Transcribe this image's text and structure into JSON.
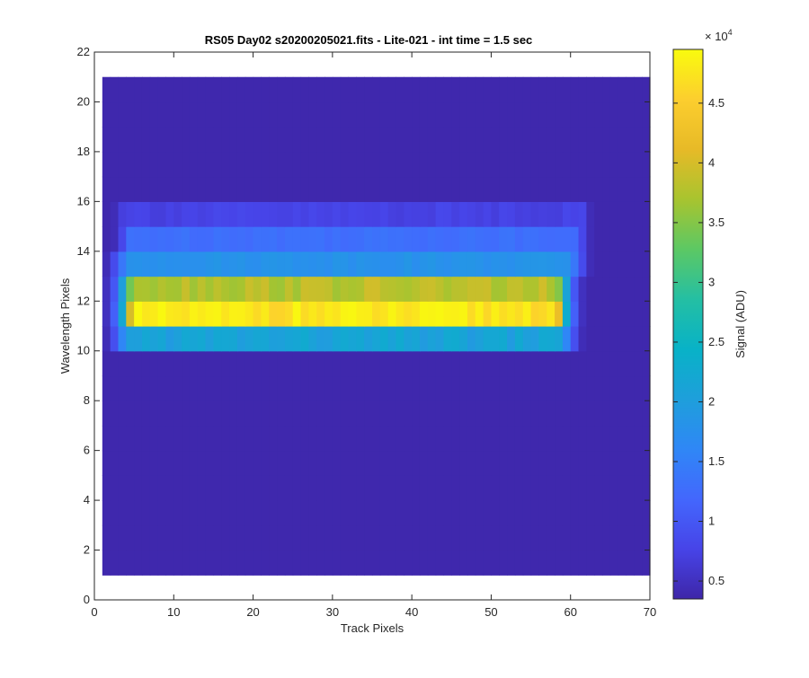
{
  "chart_data": {
    "type": "heatmap",
    "title": "RS05 Day02  s20200205021.fits - Lite-021 - int time = 1.5 sec",
    "xlabel": "Track Pixels",
    "ylabel": "Wavelength Pixels",
    "xlim": [
      0,
      70
    ],
    "ylim": [
      0,
      22
    ],
    "xticks": [
      "0",
      "10",
      "20",
      "30",
      "40",
      "50",
      "60",
      "70"
    ],
    "yticks": [
      "0",
      "2",
      "4",
      "6",
      "8",
      "10",
      "12",
      "14",
      "16",
      "18",
      "20",
      "22"
    ],
    "grid": false,
    "x_columns": [
      1,
      69
    ],
    "y_rows": [
      1,
      21
    ],
    "colorbar": {
      "label": "Signal (ADU)",
      "multiplier": "× 10",
      "multiplier_exponent": "4",
      "ticks": [
        "0.5",
        "1",
        "1.5",
        "2",
        "2.5",
        "3",
        "3.5",
        "4",
        "4.5"
      ],
      "tick_values": [
        0.5,
        1,
        1.5,
        2,
        2.5,
        3,
        3.5,
        4,
        4.5
      ],
      "range": [
        0.35,
        4.95
      ],
      "colormap": "parula",
      "colormap_stops": [
        "#3e26a8",
        "#4744e8",
        "#4367fd",
        "#2f87f6",
        "#1e9fdb",
        "#08b2c7",
        "#24bfa3",
        "#5cc864",
        "#a8c42f",
        "#e7ba27",
        "#fcce2e",
        "#f9fb0e"
      ]
    },
    "background_value": 0.38,
    "rows": [
      {
        "wavelength_pixel": 11,
        "start_x": 5,
        "end_x": 57,
        "value": 4.75,
        "edge_left": [
          0.5,
          1.1,
          2.2,
          4.0
        ],
        "edge_right": [
          4.2,
          2.3,
          1.1,
          0.5
        ]
      },
      {
        "wavelength_pixel": 12,
        "start_x": 5,
        "end_x": 57,
        "value": 3.8,
        "edge_left": [
          0.5,
          1.0,
          2.0,
          3.4
        ],
        "edge_right": [
          3.5,
          2.1,
          1.0,
          0.5
        ]
      },
      {
        "wavelength_pixel": 10,
        "start_x": 4,
        "end_x": 58,
        "value": 2.1,
        "edge_left": [
          0.45,
          0.9,
          1.6
        ],
        "edge_right": [
          1.6,
          0.9,
          0.45
        ]
      },
      {
        "wavelength_pixel": 13,
        "start_x": 4,
        "end_x": 59,
        "value": 1.8,
        "edge_left": [
          0.45,
          0.85,
          1.4
        ],
        "edge_right": [
          1.4,
          0.85,
          0.45
        ]
      },
      {
        "wavelength_pixel": 14,
        "start_x": 4,
        "end_x": 60,
        "value": 1.3,
        "edge_left": [
          0.45,
          0.8
        ],
        "edge_right": [
          0.8,
          0.45
        ]
      },
      {
        "wavelength_pixel": 15,
        "start_x": 3,
        "end_x": 61,
        "value": 0.75,
        "edge_left": [
          0.45
        ],
        "edge_right": [
          0.45
        ]
      }
    ]
  }
}
